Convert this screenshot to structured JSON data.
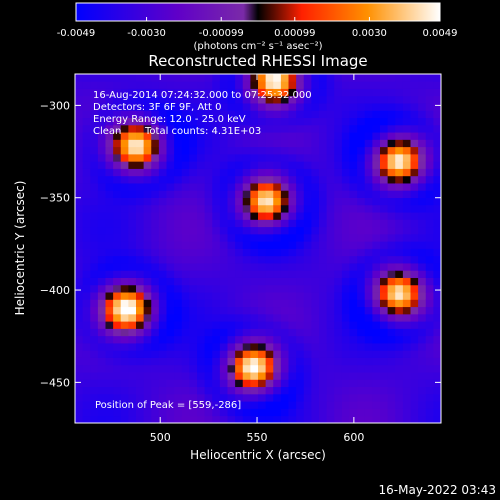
{
  "chart_data": {
    "type": "heatmap",
    "title": "Reconstructed RHESSI Image",
    "xlabel": "Heliocentric X (arcsec)",
    "ylabel": "Heliocentric Y (arcsec)",
    "xlim": [
      456,
      645
    ],
    "ylim": [
      -472,
      -283
    ],
    "x_ticks": [
      500,
      550,
      600
    ],
    "y_ticks": [
      -300,
      -350,
      -400,
      -450
    ],
    "colorbar": {
      "tick_labels": [
        "-0.0049",
        "-0.0030",
        "-0.00099",
        "0.00099",
        "0.0030",
        "0.0049"
      ],
      "tick_values": [
        -0.0049,
        -0.003,
        -0.00099,
        0.00099,
        0.003,
        0.0049
      ],
      "range": [
        -0.0049,
        0.0049
      ],
      "units_label": "(photons cm⁻² s⁻¹ asec⁻²)",
      "colors": [
        "#0000ff",
        "#6000c8",
        "#7a2aa8",
        "#000000",
        "#ff2000",
        "#ff9000",
        "#ffffff"
      ]
    },
    "annotations": {
      "time_range": "16-Aug-2014 07:24:32.000 to 07:25:32.000",
      "detectors": "Detectors: 3F 6F 9F, Att 0",
      "energy_range": "Energy Range: 12.0 - 25.0 keV",
      "algorithm": "Clean",
      "total_counts": "Total counts: 4.31E+03",
      "peak_position": "Position of Peak = [559,-286]"
    },
    "sources": [
      {
        "x": 559,
        "y": -286,
        "peak": 0.0049
      },
      {
        "x": 488,
        "y": -322,
        "peak": 0.0042
      },
      {
        "x": 623,
        "y": -330,
        "peak": 0.0047
      },
      {
        "x": 555,
        "y": -352,
        "peak": 0.0049
      },
      {
        "x": 483,
        "y": -410,
        "peak": 0.0047
      },
      {
        "x": 623,
        "y": -402,
        "peak": 0.0045
      },
      {
        "x": 548,
        "y": -442,
        "peak": 0.0048
      }
    ]
  },
  "footer": {
    "timestamp": "16-May-2022 03:43"
  }
}
